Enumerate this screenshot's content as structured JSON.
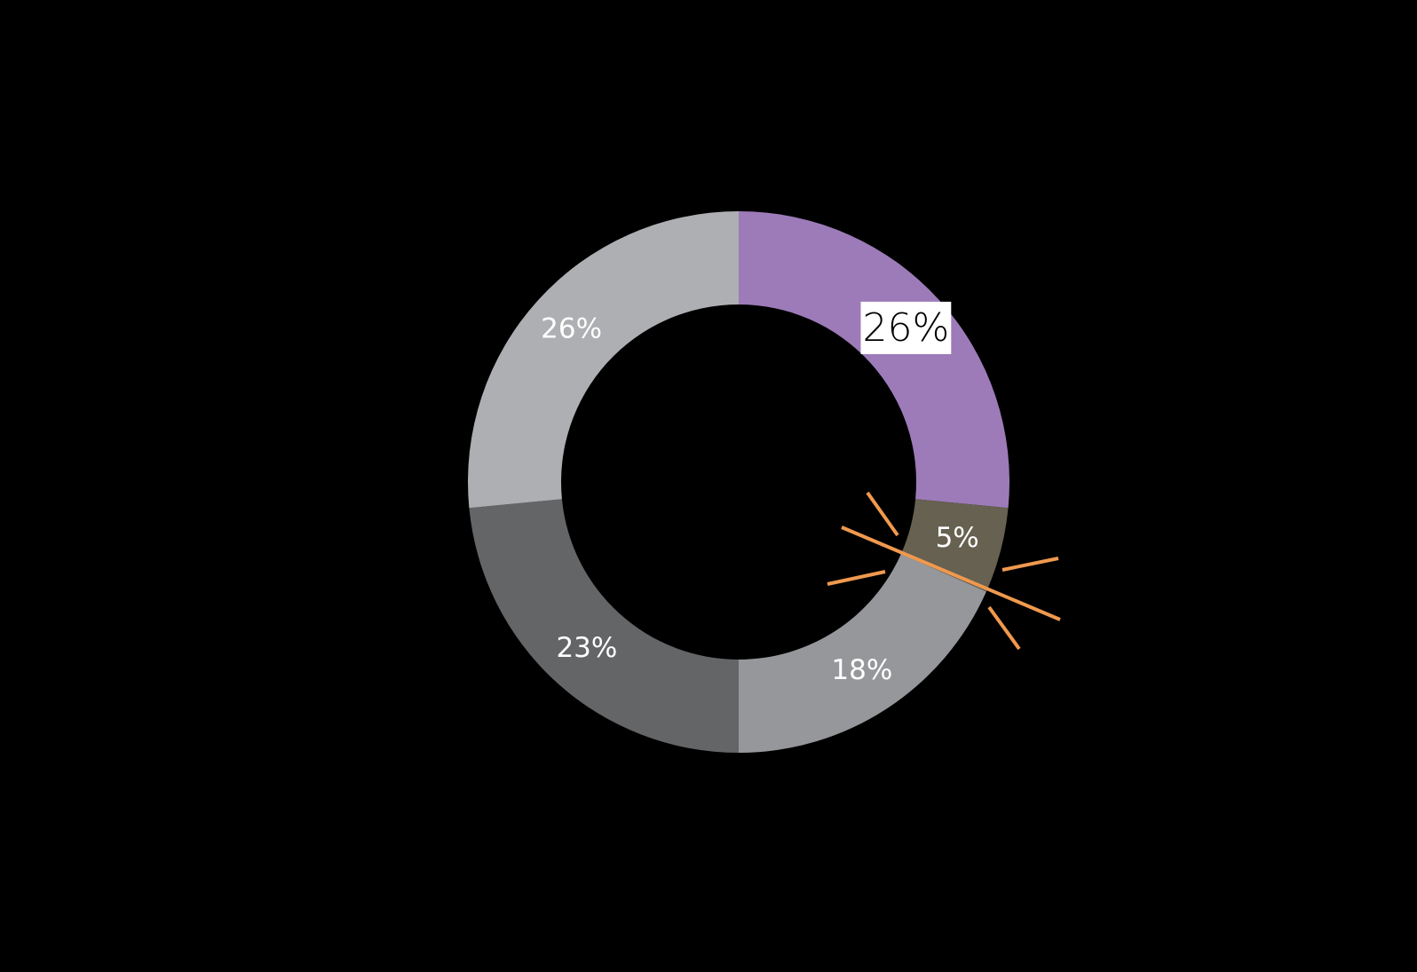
{
  "chart_data": {
    "type": "donut",
    "values": [
      26,
      5,
      18,
      23,
      26
    ],
    "value_labels": [
      "26%",
      "5%",
      "18%",
      "23%",
      "26%"
    ],
    "colors": [
      "#9d7bb9",
      "#666150",
      "#96979a",
      "#646567",
      "#aeafb2"
    ]
  }
}
